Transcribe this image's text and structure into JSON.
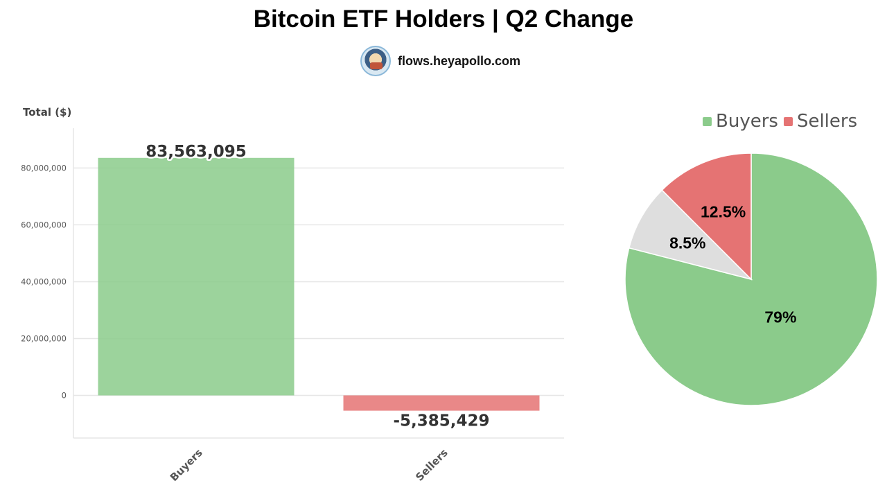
{
  "title": "Bitcoin ETF Holders | Q2 Change",
  "source": {
    "text": "flows.heyapollo.com",
    "icon": "apollo-avatar-icon"
  },
  "colors": {
    "buyers": "#8bcb8b",
    "sellers": "#e57373",
    "other": "#dedede",
    "grid": "#e6e6e6",
    "axis": "#555555"
  },
  "chart_data": [
    {
      "type": "bar",
      "ylabel": "Total ($)",
      "categories": [
        "Buyers",
        "Sellers"
      ],
      "values": [
        83563095,
        -5385429
      ],
      "value_labels": [
        "83,563,095",
        "-5,385,429"
      ],
      "ylim": [
        -15000000,
        94000000
      ],
      "yticks": [
        0,
        20000000,
        40000000,
        60000000,
        80000000
      ],
      "ytick_labels": [
        "0",
        "20,000,000",
        "40,000,000",
        "60,000,000",
        "80,000,000"
      ],
      "grid": true
    },
    {
      "type": "pie",
      "legend": [
        "Buyers",
        "Sellers"
      ],
      "legend_position": "top",
      "slices": [
        {
          "value": 79,
          "label": "79%",
          "color": "#8bcb8b"
        },
        {
          "value": 8.5,
          "label": "8.5%",
          "color": "#dedede"
        },
        {
          "value": 12.5,
          "label": "12.5%",
          "color": "#e57373"
        }
      ]
    }
  ]
}
